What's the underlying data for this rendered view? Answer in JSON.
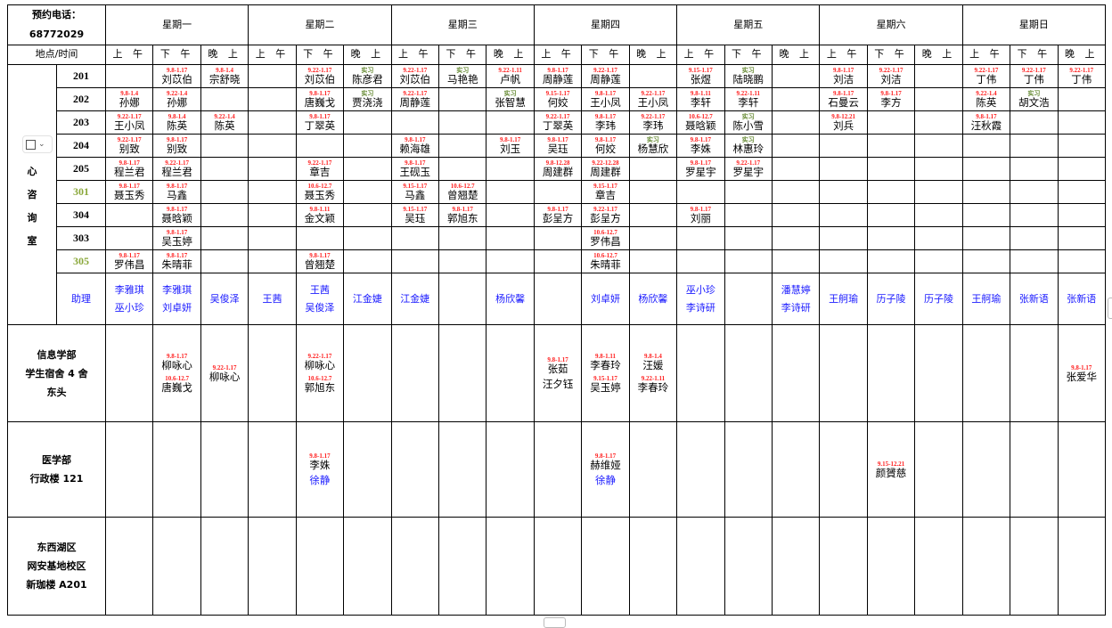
{
  "header": {
    "phone_label": "预约电话：",
    "phone_number": "68772029",
    "place_time_label": "地点/时间"
  },
  "days": [
    "星期一",
    "星期二",
    "星期三",
    "星期四",
    "星期五",
    "星期六",
    "星期日"
  ],
  "slots": [
    "上 午",
    "下 午",
    "晚 上"
  ],
  "colors": {
    "date_tag": "#ff2020",
    "intern_tag": "#6b8e3a",
    "assistant": "#1a1aff",
    "room_highlight": "#8aa83a"
  },
  "center": {
    "name_chars": [
      "中",
      "心",
      "咨",
      "询",
      "室"
    ],
    "rooms": [
      {
        "room": "201",
        "highlight": false,
        "cells": [
          [],
          [
            {
              "tag": "9.8-1.17",
              "name": "刘苡伯"
            }
          ],
          [
            {
              "tag": "9.8-1.4",
              "name": "宗舒晓"
            }
          ],
          [],
          [
            {
              "tag": "9.22-1.17",
              "name": "刘苡伯"
            }
          ],
          [
            {
              "tag": "实习",
              "name": "陈彦君"
            }
          ],
          [
            {
              "tag": "9.22-1.17",
              "name": "刘苡伯"
            }
          ],
          [
            {
              "tag": "实习",
              "name": "马艳艳"
            }
          ],
          [
            {
              "tag": "9.22-1.11",
              "name": "卢帆"
            }
          ],
          [
            {
              "tag": "9.8-1.17",
              "name": "周静莲"
            }
          ],
          [
            {
              "tag": "9.22-1.17",
              "name": "周静莲"
            }
          ],
          [],
          [
            {
              "tag": "9.15-1.17",
              "name": "张煜"
            }
          ],
          [
            {
              "tag": "实习",
              "name": "陆晓鹏"
            }
          ],
          [],
          [
            {
              "tag": "9.8-1.17",
              "name": "刘洁"
            }
          ],
          [
            {
              "tag": "9.22-1.17",
              "name": "刘洁"
            }
          ],
          [],
          [
            {
              "tag": "9.22-1.17",
              "name": "丁伟"
            }
          ],
          [
            {
              "tag": "9.22-1.17",
              "name": "丁伟"
            }
          ],
          [
            {
              "tag": "9.22-1.17",
              "name": "丁伟"
            }
          ]
        ]
      },
      {
        "room": "202",
        "highlight": false,
        "cells": [
          [
            {
              "tag": "9.8-1.4",
              "name": "孙娜"
            }
          ],
          [
            {
              "tag": "9.22-1.4",
              "name": "孙娜"
            }
          ],
          [],
          [],
          [
            {
              "tag": "9.8-1.17",
              "name": "唐巍戈"
            }
          ],
          [
            {
              "tag": "实习",
              "name": "贾浇浇"
            }
          ],
          [
            {
              "tag": "9.22-1.17",
              "name": "周静莲"
            }
          ],
          [],
          [
            {
              "tag": "实习",
              "name": "张智慧"
            }
          ],
          [
            {
              "tag": "9.15-1.17",
              "name": "何姣"
            }
          ],
          [
            {
              "tag": "9.8-1.17",
              "name": "王小凤"
            }
          ],
          [
            {
              "tag": "9.22-1.17",
              "name": "王小凤"
            }
          ],
          [
            {
              "tag": "9.8-1.11",
              "name": "李轩"
            }
          ],
          [
            {
              "tag": "9.22-1.11",
              "name": "李轩"
            }
          ],
          [],
          [
            {
              "tag": "9.8-1.17",
              "name": "石曼云"
            }
          ],
          [
            {
              "tag": "9.8-1.17",
              "name": "李方"
            }
          ],
          [],
          [
            {
              "tag": "9.22-1.4",
              "name": "陈英"
            }
          ],
          [
            {
              "tag": "实习",
              "name": "胡文浩"
            }
          ],
          []
        ]
      },
      {
        "room": "203",
        "highlight": false,
        "cells": [
          [
            {
              "tag": "9.22-1.17",
              "name": "王小凤"
            }
          ],
          [
            {
              "tag": "9.8-1.4",
              "name": "陈英"
            }
          ],
          [
            {
              "tag": "9.22-1.4",
              "name": "陈英"
            }
          ],
          [],
          [
            {
              "tag": "9.8-1.17",
              "name": "丁翠英"
            }
          ],
          [],
          [],
          [],
          [],
          [
            {
              "tag": "9.22-1.17",
              "name": "丁翠英"
            }
          ],
          [
            {
              "tag": "9.8-1.17",
              "name": "李玮"
            }
          ],
          [
            {
              "tag": "9.22-1.17",
              "name": "李玮"
            }
          ],
          [
            {
              "tag": "10.6-12.7",
              "name": "聂晗颖"
            }
          ],
          [
            {
              "tag": "实习",
              "name": "陈小雪"
            }
          ],
          [],
          [
            {
              "tag": "9.8-12.21",
              "name": "刘兵"
            }
          ],
          [],
          [],
          [
            {
              "tag": "9.8-1.17",
              "name": "汪秋霞"
            }
          ],
          [],
          []
        ]
      },
      {
        "room": "204",
        "highlight": false,
        "cells": [
          [
            {
              "tag": "9.22-1.17",
              "name": "别致"
            }
          ],
          [
            {
              "tag": "9.8-1.17",
              "name": "别致"
            }
          ],
          [],
          [],
          [],
          [],
          [
            {
              "tag": "9.8-1.17",
              "name": "赖海雄"
            }
          ],
          [],
          [
            {
              "tag": "9.8-1.17",
              "name": "刘玉"
            }
          ],
          [
            {
              "tag": "9.8-1.17",
              "name": "吴珏"
            }
          ],
          [
            {
              "tag": "9.8-1.17",
              "name": "何姣"
            }
          ],
          [
            {
              "tag": "实习",
              "name": "杨慧欣"
            }
          ],
          [
            {
              "tag": "9.8-1.17",
              "name": "李姝"
            }
          ],
          [
            {
              "tag": "实习",
              "name": "林惠玲"
            }
          ],
          [],
          [],
          [],
          [],
          [],
          [],
          []
        ]
      },
      {
        "room": "205",
        "highlight": false,
        "cells": [
          [
            {
              "tag": "9.8-1.17",
              "name": "程兰君"
            }
          ],
          [
            {
              "tag": "9.22-1.17",
              "name": "程兰君"
            }
          ],
          [],
          [],
          [
            {
              "tag": "9.22-1.17",
              "name": "章吉"
            }
          ],
          [],
          [
            {
              "tag": "9.8-1.17",
              "name": "王砚玉"
            }
          ],
          [],
          [],
          [
            {
              "tag": "9.8-12.28",
              "name": "周建群"
            }
          ],
          [
            {
              "tag": "9.22-12.28",
              "name": "周建群"
            }
          ],
          [],
          [
            {
              "tag": "9.8-1.17",
              "name": "罗星宇"
            }
          ],
          [
            {
              "tag": "9.22-1.17",
              "name": "罗星宇"
            }
          ],
          [],
          [],
          [],
          [],
          [],
          [],
          []
        ]
      },
      {
        "room": "301",
        "highlight": true,
        "cells": [
          [
            {
              "tag": "9.8-1.17",
              "name": "聂玉秀"
            }
          ],
          [
            {
              "tag": "9.8-1.17",
              "name": "马鑫"
            }
          ],
          [],
          [],
          [
            {
              "tag": "10.6-12.7",
              "name": "聂玉秀"
            }
          ],
          [],
          [
            {
              "tag": "9.15-1.17",
              "name": "马鑫"
            }
          ],
          [
            {
              "tag": "10.6-12.7",
              "name": "曾翘楚"
            }
          ],
          [],
          [],
          [
            {
              "tag": "9.15-1.17",
              "name": "章吉"
            }
          ],
          [],
          [],
          [],
          [],
          [],
          [],
          [],
          [],
          [],
          []
        ]
      },
      {
        "room": "304",
        "highlight": false,
        "cells": [
          [],
          [
            {
              "tag": "9.8-1.17",
              "name": "聂晗颖"
            }
          ],
          [],
          [],
          [
            {
              "tag": "9.8-1.11",
              "name": "金文颖"
            }
          ],
          [],
          [
            {
              "tag": "9.15-1.17",
              "name": "吴珏"
            }
          ],
          [
            {
              "tag": "9.8-1.17",
              "name": "郭旭东"
            }
          ],
          [],
          [
            {
              "tag": "9.8-1.17",
              "name": "彭呈方"
            }
          ],
          [
            {
              "tag": "9.22-1.17",
              "name": "彭呈方"
            }
          ],
          [],
          [
            {
              "tag": "9.8-1.17",
              "name": "刘丽"
            }
          ],
          [],
          [],
          [],
          [],
          [],
          [],
          [],
          []
        ]
      },
      {
        "room": "303",
        "highlight": false,
        "cells": [
          [],
          [
            {
              "tag": "9.8-1.17",
              "name": "吴玉婷"
            }
          ],
          [],
          [],
          [],
          [],
          [],
          [],
          [],
          [],
          [
            {
              "tag": "10.6-12.7",
              "name": "罗伟昌"
            }
          ],
          [],
          [],
          [],
          [],
          [],
          [],
          [],
          [],
          [],
          []
        ]
      },
      {
        "room": "305",
        "highlight": true,
        "cells": [
          [
            {
              "tag": "9.8-1.17",
              "name": "罗伟昌"
            }
          ],
          [
            {
              "tag": "9.8-1.17",
              "name": "朱晴菲"
            }
          ],
          [],
          [],
          [
            {
              "tag": "9.8-1.17",
              "name": "曾翘楚"
            }
          ],
          [],
          [],
          [],
          [],
          [],
          [
            {
              "tag": "10.6-12.7",
              "name": "朱晴菲"
            }
          ],
          [],
          [],
          [],
          [],
          [],
          [],
          [],
          [],
          [],
          []
        ]
      }
    ],
    "assistant_label": "助理",
    "assistants": [
      [
        "李雅琪",
        "巫小珍"
      ],
      [
        "李雅琪",
        "刘卓妍"
      ],
      [
        "吴俊泽"
      ],
      [
        "王茜"
      ],
      [
        "王茜",
        "吴俊泽"
      ],
      [
        "江金婕"
      ],
      [
        "江金婕"
      ],
      [],
      [
        "杨欣馨"
      ],
      [],
      [
        "刘卓妍"
      ],
      [
        "杨欣馨"
      ],
      [
        "巫小珍",
        "李诗研"
      ],
      [],
      [
        "潘慧婷",
        "李诗研"
      ],
      [
        "王舸瑜"
      ],
      [
        "历子陵"
      ],
      [
        "历子陵"
      ],
      [
        "王舸瑜"
      ],
      [
        "张新语"
      ],
      [
        "张新语"
      ]
    ]
  },
  "locations": [
    {
      "lines": [
        "信息学部",
        "学生宿舍 4 舍",
        "东头"
      ],
      "cells": [
        [],
        [
          {
            "tag": "9.8-1.17",
            "name": "柳咏心"
          },
          {
            "tag": "10.6-12.7",
            "name": "唐巍戈"
          }
        ],
        [
          {
            "tag": "9.22-1.17",
            "name": "柳咏心"
          }
        ],
        [],
        [
          {
            "tag": "9.22-1.17",
            "name": "柳咏心"
          },
          {
            "tag": "10.6-12.7",
            "name": "郭旭东"
          }
        ],
        [],
        [],
        [],
        [],
        [
          {
            "tag": "9.8-1.17",
            "name": "张茹"
          },
          {
            "tag": "",
            "name": "汪夕钰"
          }
        ],
        [
          {
            "tag": "9.8-1.11",
            "name": "李春玲"
          },
          {
            "tag": "9.15-1.17",
            "name": "吴玉婷"
          }
        ],
        [
          {
            "tag": "9.8-1.4",
            "name": "汪媛"
          },
          {
            "tag": "9.22-1.11",
            "name": "李春玲"
          }
        ],
        [],
        [],
        [],
        [],
        [],
        [],
        [],
        [],
        [
          {
            "tag": "9.8-1.17",
            "name": "张爱华"
          }
        ]
      ]
    },
    {
      "lines": [
        "医学部",
        "行政楼 121"
      ],
      "cells": [
        [],
        [],
        [],
        [],
        [
          {
            "tag": "9.8-1.17",
            "name": "李姝"
          },
          {
            "tag": "",
            "name": "徐静",
            "blue": true
          }
        ],
        [],
        [],
        [],
        [],
        [],
        [
          {
            "tag": "9.8-1.17",
            "name": "赫维娅"
          },
          {
            "tag": "",
            "name": "徐静",
            "blue": true
          }
        ],
        [],
        [],
        [],
        [],
        [],
        [
          {
            "tag": "9.15-12.21",
            "name": "颜贇慈"
          }
        ],
        [],
        [],
        [],
        []
      ]
    },
    {
      "lines": [
        "东西湖区",
        "网安基地校区",
        "新珈楼 A201"
      ],
      "cells": [
        [],
        [],
        [],
        [],
        [],
        [],
        [],
        [],
        [],
        [],
        [],
        [],
        [],
        [],
        [],
        [],
        [],
        [],
        [],
        [],
        []
      ]
    }
  ]
}
